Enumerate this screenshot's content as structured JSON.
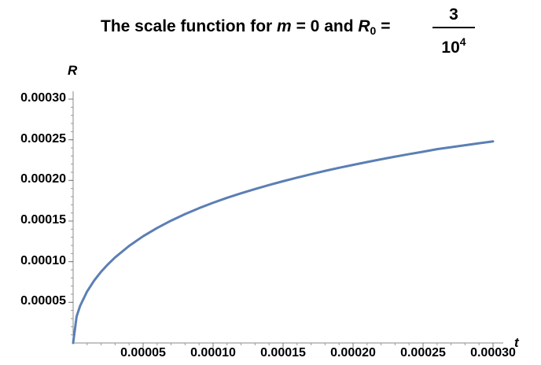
{
  "chart_data": {
    "type": "line",
    "title_parts": {
      "lead": "The scale function for",
      "m_var": "m",
      "m_eq": "= 0 and",
      "r_var": "R",
      "r_sub": "0",
      "r_eq": "=",
      "frac_num": "3",
      "frac_den_base": "10",
      "frac_den_exp": "4"
    },
    "xlabel": "t",
    "ylabel": "R",
    "xlim": [
      0,
      0.0003
    ],
    "ylim": [
      0,
      0.0003
    ],
    "xticks": [
      "0.00005",
      "0.00010",
      "0.00015",
      "0.00020",
      "0.00025",
      "0.00030"
    ],
    "yticks": [
      "0.00005",
      "0.00010",
      "0.00015",
      "0.00020",
      "0.00025",
      "0.00030"
    ],
    "grid": false,
    "series": [
      {
        "color": "#5b7fb4",
        "x": [
          0,
          2.5e-06,
          5e-06,
          1e-05,
          1.5e-05,
          2e-05,
          2.5e-05,
          3e-05,
          4e-05,
          5e-05,
          6e-05,
          7e-05,
          8e-05,
          9e-05,
          0.0001,
          0.00011,
          0.00012,
          0.00013,
          0.00014,
          0.00015,
          0.00016,
          0.00017,
          0.00018,
          0.00019,
          0.0002,
          0.00021,
          0.00022,
          0.00023,
          0.00024,
          0.00025,
          0.00026,
          0.00027,
          0.00028,
          0.00029,
          0.0003
        ],
        "y": [
          0,
          3.27e-05,
          4.57e-05,
          6.35e-05,
          7.68e-05,
          8.77e-05,
          9.7e-05,
          0.0001053,
          0.0001194,
          0.0001313,
          0.0001415,
          0.0001505,
          0.0001586,
          0.0001659,
          0.0001725,
          0.0001786,
          0.0001842,
          0.0001894,
          0.0001943,
          0.000199,
          0.0002034,
          0.0002076,
          0.0002117,
          0.0002155,
          0.0002191,
          0.0002226,
          0.000226,
          0.0002292,
          0.0002323,
          0.0002353,
          0.0002384,
          0.0002408,
          0.0002433,
          0.0002457,
          0.000248
        ]
      }
    ]
  }
}
